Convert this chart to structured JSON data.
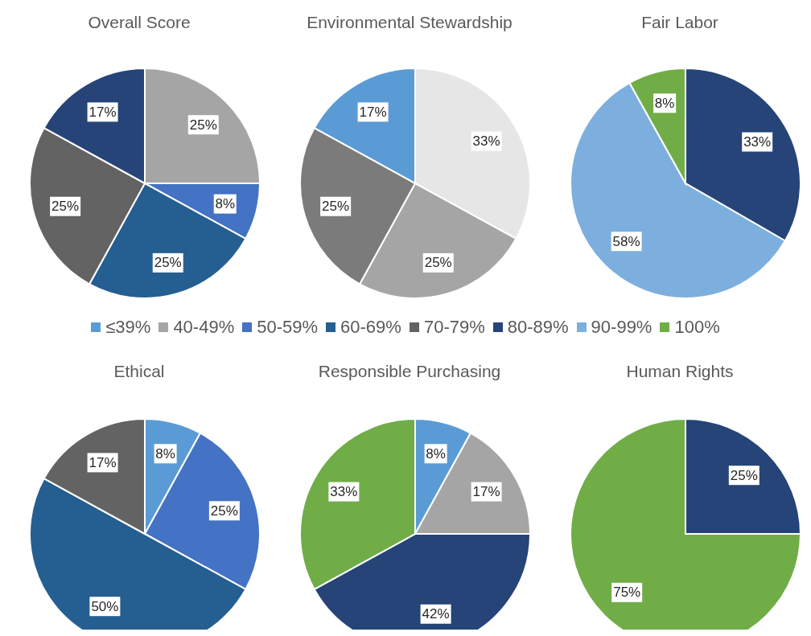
{
  "chart_data": [
    {
      "type": "pie",
      "title": "Overall Score",
      "legend": "bottom",
      "categories": [
        "≤39%",
        "40-49%",
        "50-59%",
        "60-69%",
        "70-79%",
        "80-89%",
        "90-99%",
        "100%"
      ],
      "values": [
        null,
        25,
        8,
        25,
        25,
        17,
        null,
        null
      ],
      "value_labels": [
        null,
        "25%",
        "8%",
        "25%",
        "25%",
        "17%",
        null,
        null
      ],
      "colors": [
        "#5b9bd5",
        "#a5a5a5",
        "#4472c4",
        "#255e91",
        "#636363",
        "#264478",
        "#7cafdd",
        "#70ad47"
      ]
    },
    {
      "type": "pie",
      "title": "Environmental Stewardship",
      "categories": [
        null,
        null,
        null,
        null
      ],
      "values": [
        33,
        25,
        25,
        17
      ],
      "value_labels": [
        "33%",
        "25%",
        "25%",
        "17%"
      ],
      "colors": [
        "#e7e6e6",
        "#a5a5a5",
        "#7b7b7b",
        "#5b9bd5"
      ]
    },
    {
      "type": "pie",
      "title": "Fair Labor",
      "categories": [
        null,
        null,
        null
      ],
      "values": [
        33,
        58,
        8
      ],
      "value_labels": [
        "33%",
        "58%",
        "8%"
      ],
      "colors": [
        "#264478",
        "#7cafdd",
        "#70ad47"
      ]
    },
    {
      "type": "pie",
      "title": "Ethical",
      "categories": [
        null,
        null,
        null,
        null
      ],
      "values": [
        8,
        25,
        50,
        17
      ],
      "value_labels": [
        "8%",
        "25%",
        "50%",
        "17%"
      ],
      "colors": [
        "#5b9bd5",
        "#4472c4",
        "#255e91",
        "#636363"
      ]
    },
    {
      "type": "pie",
      "title": "Responsible Purchasing",
      "categories": [
        null,
        null,
        null,
        null
      ],
      "values": [
        8,
        17,
        42,
        33
      ],
      "value_labels": [
        "8%",
        "17%",
        "42%",
        "33%"
      ],
      "colors": [
        "#5b9bd5",
        "#a5a5a5",
        "#264478",
        "#70ad47"
      ]
    },
    {
      "type": "pie",
      "title": "Human Rights",
      "categories": [
        null,
        null
      ],
      "values": [
        25,
        75
      ],
      "value_labels": [
        "25%",
        "75%"
      ],
      "colors": [
        "#264478",
        "#70ad47"
      ]
    }
  ]
}
